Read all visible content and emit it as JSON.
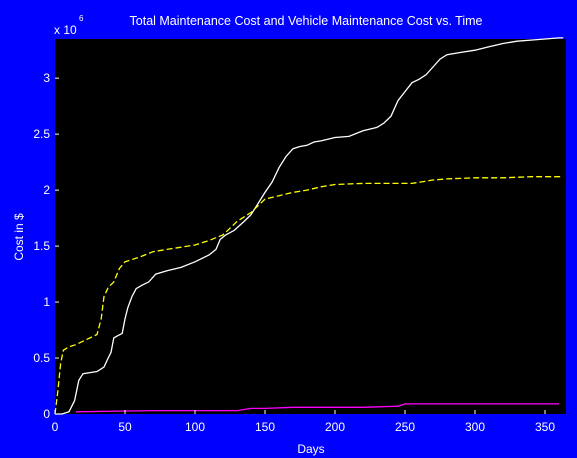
{
  "figure": {
    "background": "#0000ff",
    "axes_background": "#000000",
    "foreground": "#ffffff"
  },
  "chart_data": {
    "type": "line",
    "title": "Total Maintenance Cost and Vehicle Maintenance Cost vs. Time",
    "xlabel": "Days",
    "ylabel": "Cost in $",
    "y_exponent_label": "x 10",
    "y_exponent": "6",
    "xlim": [
      0,
      365
    ],
    "ylim": [
      0,
      3.35
    ],
    "y_scale_factor": 1000000,
    "xticks": [
      0,
      50,
      100,
      150,
      200,
      250,
      300,
      350
    ],
    "yticks": [
      0,
      0.5,
      1,
      1.5,
      2,
      2.5,
      3
    ],
    "ytick_labels": [
      "0",
      "0.5",
      "1",
      "1.5",
      "2",
      "2.5",
      "3"
    ],
    "grid": false,
    "legend": false,
    "series": [
      {
        "color": "#ffffff",
        "style": "solid",
        "points": [
          [
            0,
            0
          ],
          [
            5,
            0.0
          ],
          [
            10,
            0.02
          ],
          [
            14,
            0.12
          ],
          [
            17,
            0.3
          ],
          [
            20,
            0.36
          ],
          [
            25,
            0.37
          ],
          [
            30,
            0.38
          ],
          [
            35,
            0.42
          ],
          [
            38,
            0.5
          ],
          [
            40,
            0.55
          ],
          [
            42,
            0.68
          ],
          [
            45,
            0.7
          ],
          [
            48,
            0.72
          ],
          [
            50,
            0.85
          ],
          [
            52,
            0.95
          ],
          [
            55,
            1.05
          ],
          [
            58,
            1.12
          ],
          [
            62,
            1.15
          ],
          [
            67,
            1.18
          ],
          [
            72,
            1.25
          ],
          [
            80,
            1.28
          ],
          [
            90,
            1.31
          ],
          [
            100,
            1.36
          ],
          [
            110,
            1.42
          ],
          [
            115,
            1.47
          ],
          [
            118,
            1.56
          ],
          [
            122,
            1.6
          ],
          [
            128,
            1.64
          ],
          [
            135,
            1.72
          ],
          [
            140,
            1.78
          ],
          [
            145,
            1.88
          ],
          [
            150,
            1.98
          ],
          [
            155,
            2.07
          ],
          [
            160,
            2.2
          ],
          [
            165,
            2.3
          ],
          [
            170,
            2.37
          ],
          [
            175,
            2.39
          ],
          [
            180,
            2.4
          ],
          [
            185,
            2.43
          ],
          [
            190,
            2.44
          ],
          [
            200,
            2.47
          ],
          [
            210,
            2.48
          ],
          [
            220,
            2.53
          ],
          [
            230,
            2.56
          ],
          [
            235,
            2.6
          ],
          [
            240,
            2.66
          ],
          [
            245,
            2.8
          ],
          [
            250,
            2.88
          ],
          [
            255,
            2.96
          ],
          [
            260,
            2.99
          ],
          [
            265,
            3.03
          ],
          [
            270,
            3.1
          ],
          [
            275,
            3.17
          ],
          [
            280,
            3.21
          ],
          [
            290,
            3.23
          ],
          [
            300,
            3.25
          ],
          [
            310,
            3.28
          ],
          [
            320,
            3.31
          ],
          [
            330,
            3.33
          ],
          [
            340,
            3.34
          ],
          [
            350,
            3.35
          ],
          [
            360,
            3.36
          ],
          [
            363,
            3.36
          ]
        ]
      },
      {
        "color": "#ffff00",
        "style": "dashed",
        "points": [
          [
            0,
            0
          ],
          [
            2,
            0.2
          ],
          [
            4,
            0.45
          ],
          [
            6,
            0.57
          ],
          [
            10,
            0.6
          ],
          [
            15,
            0.62
          ],
          [
            20,
            0.65
          ],
          [
            25,
            0.68
          ],
          [
            30,
            0.71
          ],
          [
            33,
            0.85
          ],
          [
            35,
            1.05
          ],
          [
            38,
            1.13
          ],
          [
            42,
            1.18
          ],
          [
            46,
            1.3
          ],
          [
            50,
            1.36
          ],
          [
            55,
            1.38
          ],
          [
            60,
            1.4
          ],
          [
            70,
            1.45
          ],
          [
            80,
            1.47
          ],
          [
            90,
            1.49
          ],
          [
            100,
            1.51
          ],
          [
            110,
            1.55
          ],
          [
            120,
            1.6
          ],
          [
            130,
            1.72
          ],
          [
            140,
            1.8
          ],
          [
            150,
            1.92
          ],
          [
            160,
            1.95
          ],
          [
            170,
            1.98
          ],
          [
            180,
            2.0
          ],
          [
            190,
            2.03
          ],
          [
            200,
            2.05
          ],
          [
            220,
            2.06
          ],
          [
            240,
            2.06
          ],
          [
            255,
            2.06
          ],
          [
            260,
            2.07
          ],
          [
            270,
            2.09
          ],
          [
            280,
            2.1
          ],
          [
            300,
            2.11
          ],
          [
            320,
            2.11
          ],
          [
            340,
            2.12
          ],
          [
            363,
            2.12
          ]
        ]
      },
      {
        "color": "#ff00ff",
        "style": "solid",
        "points": [
          [
            15,
            0.02
          ],
          [
            70,
            0.03
          ],
          [
            130,
            0.03
          ],
          [
            140,
            0.05
          ],
          [
            150,
            0.05
          ],
          [
            170,
            0.06
          ],
          [
            200,
            0.06
          ],
          [
            220,
            0.06
          ],
          [
            245,
            0.07
          ],
          [
            250,
            0.09
          ],
          [
            300,
            0.09
          ],
          [
            330,
            0.09
          ],
          [
            360,
            0.09
          ]
        ]
      }
    ]
  }
}
